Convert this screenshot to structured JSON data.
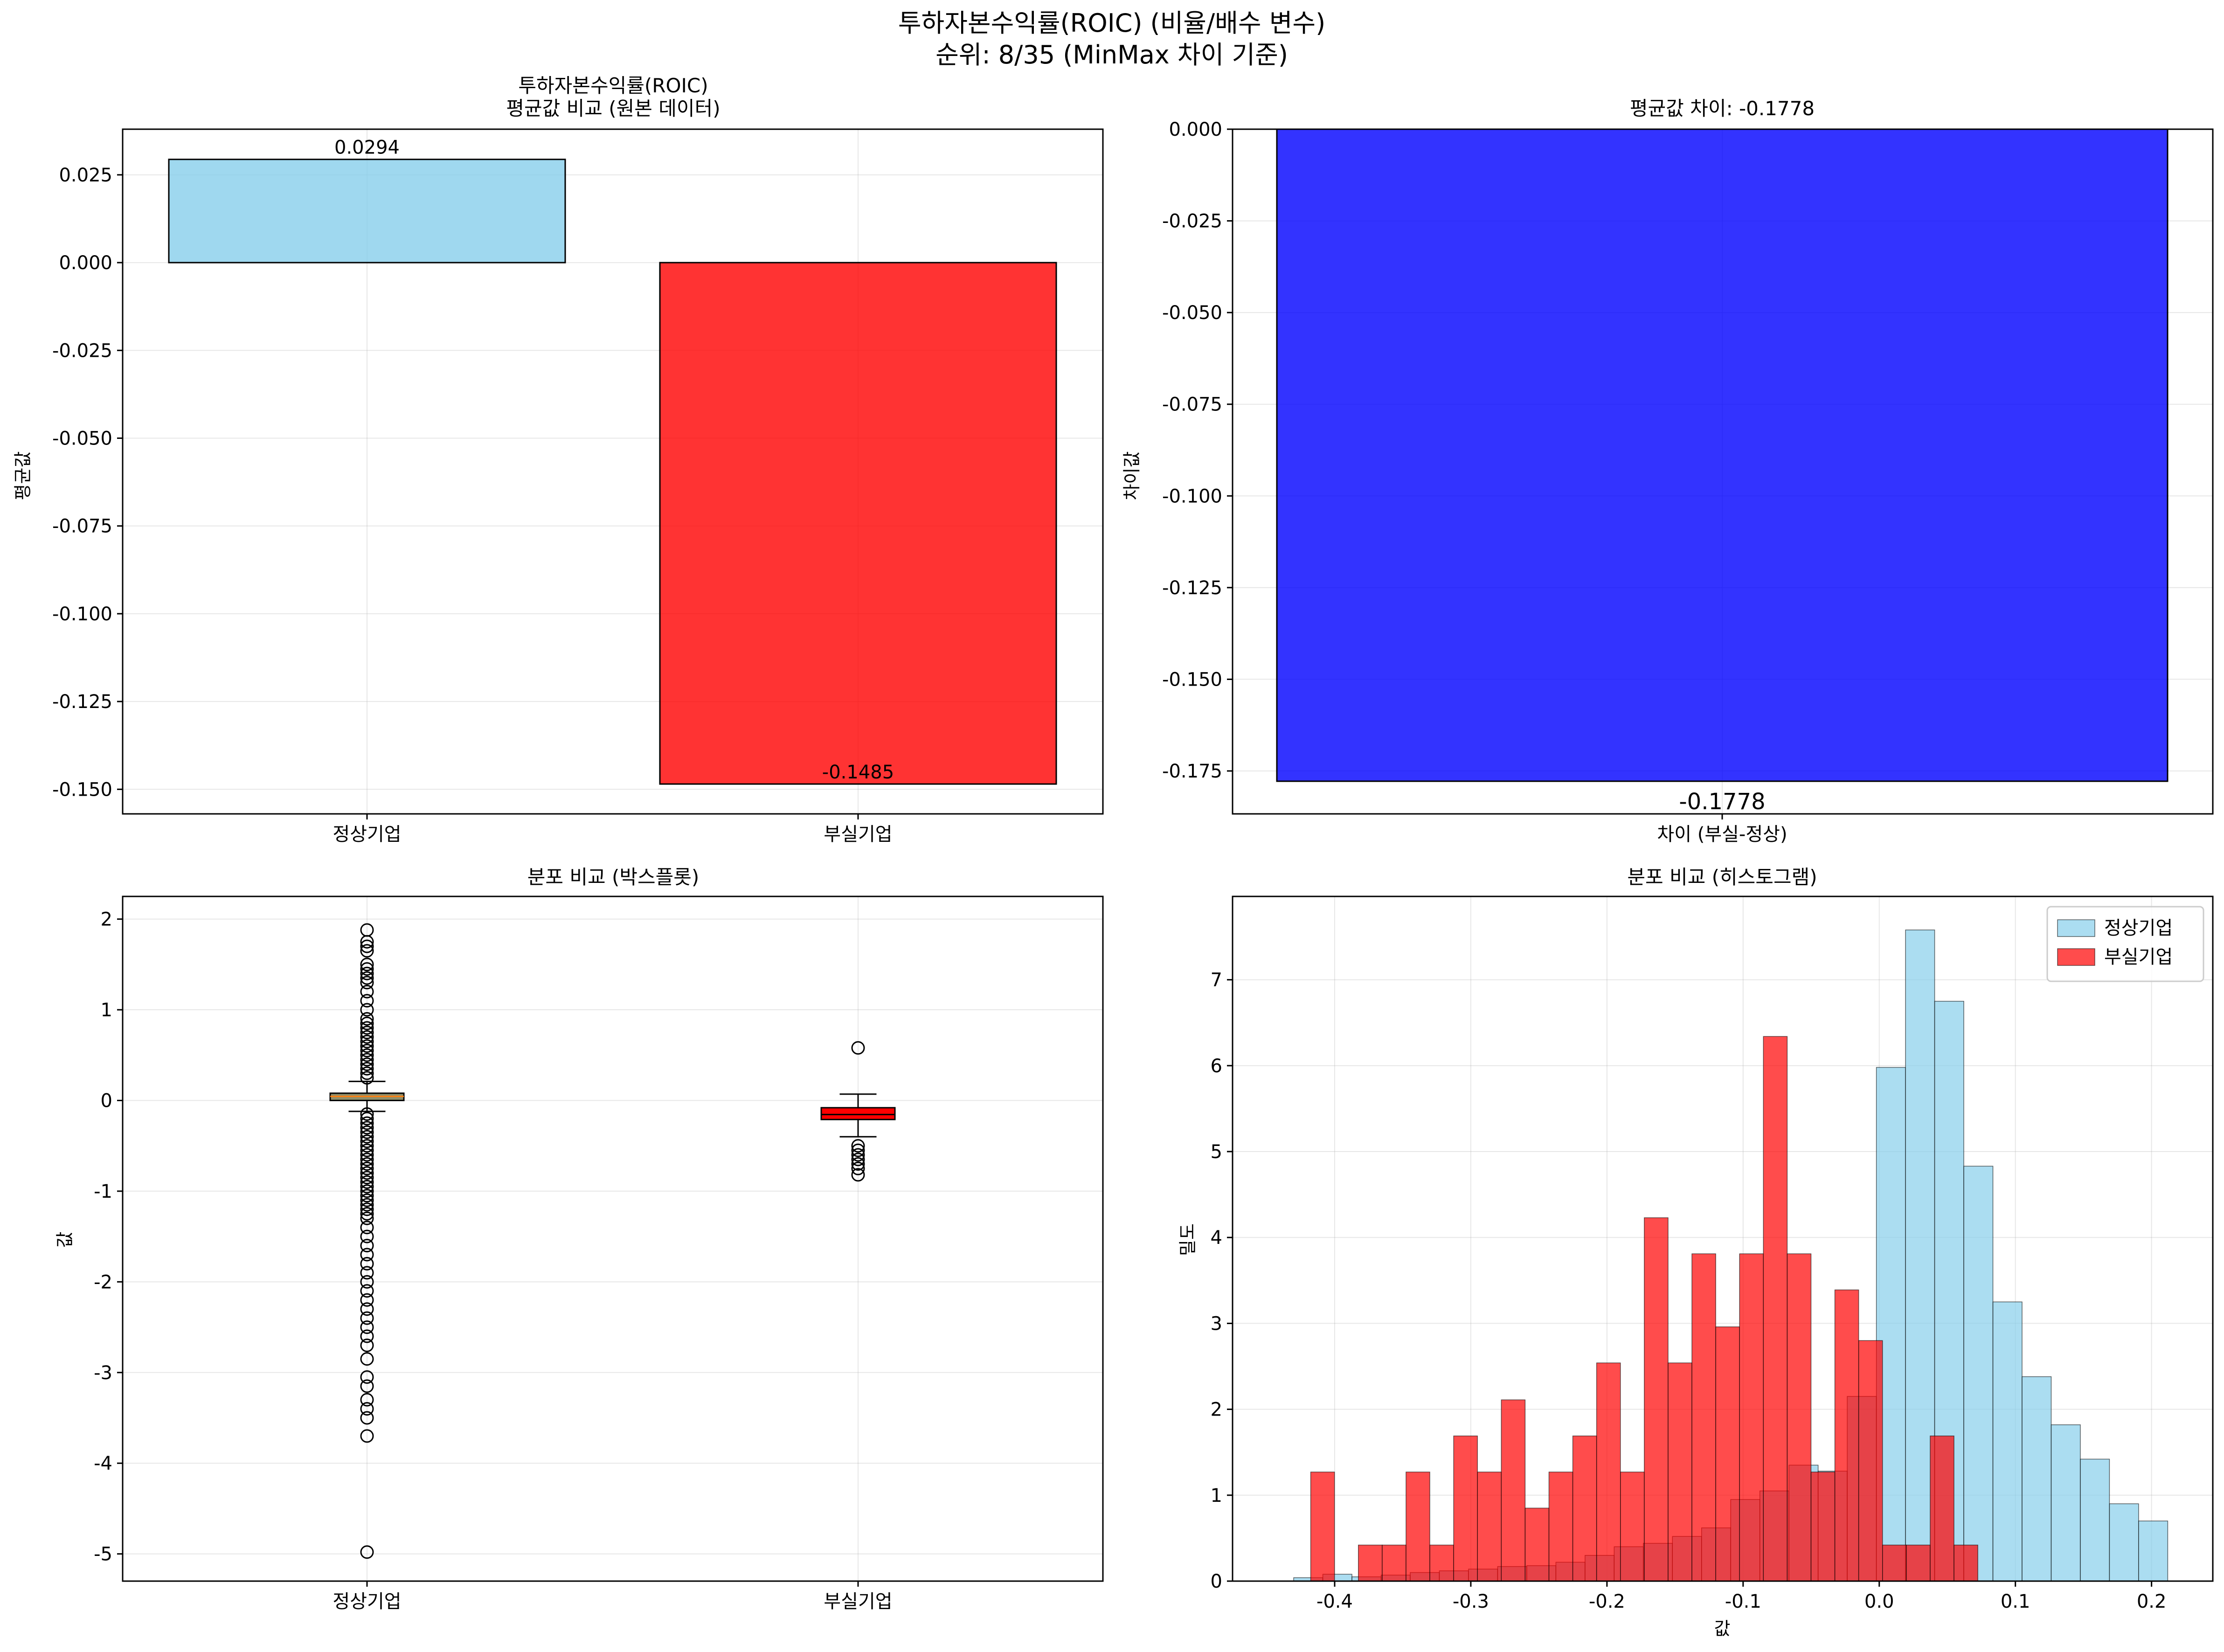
{
  "title_line1": "투하자본수익률(ROIC) (비율/배수 변수)",
  "title_line2": "순위: 8/35 (MinMax 차이 기준)",
  "colors": {
    "normal": "#87ceeb",
    "failed": "#ff0000",
    "diff": "#0000ff"
  },
  "chart_data": [
    {
      "type": "bar",
      "title": [
        "투하자본수익률(ROIC)",
        "평균값 비교 (원본 데이터)"
      ],
      "ylabel": "평균값",
      "categories": [
        "정상기업",
        "부실기업"
      ],
      "values": [
        0.0294,
        -0.1485
      ],
      "value_labels": [
        "0.0294",
        "-0.1485"
      ],
      "ylim": [
        -0.157,
        0.038
      ],
      "yticks": [
        -0.15,
        -0.125,
        -0.1,
        -0.075,
        -0.05,
        -0.025,
        0.0,
        0.025
      ],
      "ytick_labels": [
        "-0.150",
        "-0.125",
        "-0.100",
        "-0.075",
        "-0.050",
        "-0.025",
        "0.000",
        "0.025"
      ],
      "grid": true
    },
    {
      "type": "bar",
      "title": "평균값 차이: -0.1778",
      "ylabel": "차이값",
      "categories": [
        "차이 (부실-정상)"
      ],
      "values": [
        -0.1778
      ],
      "value_labels": [
        "-0.1778"
      ],
      "ylim": [
        -0.1867,
        0.0
      ],
      "yticks": [
        -0.175,
        -0.15,
        -0.125,
        -0.1,
        -0.075,
        -0.05,
        -0.025,
        0.0
      ],
      "ytick_labels": [
        "-0.175",
        "-0.150",
        "-0.125",
        "-0.100",
        "-0.075",
        "-0.050",
        "-0.025",
        "0.000"
      ],
      "grid": true
    },
    {
      "type": "box",
      "title": "분포 비교 (박스플롯)",
      "ylabel": "값",
      "categories": [
        "정상기업",
        "부실기업"
      ],
      "ylim": [
        -5.3,
        2.25
      ],
      "yticks": [
        -5,
        -4,
        -3,
        -2,
        -1,
        0,
        1,
        2
      ],
      "ytick_labels": [
        "-5",
        "-4",
        "-3",
        "-2",
        "-1",
        "0",
        "1",
        "2"
      ],
      "boxes": [
        {
          "q1": 0.0,
          "median": 0.045,
          "q3": 0.08,
          "whisker_low": -0.12,
          "whisker_high": 0.21,
          "outliers": [
            1.88,
            1.75,
            1.7,
            1.65,
            1.5,
            1.45,
            1.4,
            1.35,
            1.3,
            1.2,
            1.1,
            1.0,
            0.9,
            0.85,
            0.8,
            0.75,
            0.7,
            0.65,
            0.6,
            0.55,
            0.5,
            0.45,
            0.4,
            0.35,
            0.3,
            0.25,
            -0.15,
            -0.2,
            -0.25,
            -0.3,
            -0.35,
            -0.4,
            -0.45,
            -0.5,
            -0.55,
            -0.6,
            -0.65,
            -0.7,
            -0.75,
            -0.8,
            -0.85,
            -0.9,
            -0.95,
            -1.0,
            -1.05,
            -1.1,
            -1.15,
            -1.2,
            -1.25,
            -1.3,
            -1.4,
            -1.5,
            -1.6,
            -1.7,
            -1.8,
            -1.9,
            -2.0,
            -2.1,
            -2.2,
            -2.3,
            -2.4,
            -2.5,
            -2.6,
            -2.7,
            -2.85,
            -3.05,
            -3.15,
            -3.3,
            -3.4,
            -3.5,
            -3.7,
            -4.98
          ]
        },
        {
          "q1": -0.21,
          "median": -0.155,
          "q3": -0.08,
          "whisker_low": -0.4,
          "whisker_high": 0.07,
          "outliers": [
            0.58,
            -0.5,
            -0.55,
            -0.6,
            -0.65,
            -0.7,
            -0.75,
            -0.82
          ]
        }
      ],
      "grid": true
    },
    {
      "type": "histogram",
      "title": "분포 비교 (히스토그램)",
      "xlabel": "값",
      "ylabel": "밀도",
      "xlim": [
        -0.475,
        0.245
      ],
      "ylim": [
        0,
        7.97
      ],
      "xticks": [
        -0.4,
        -0.3,
        -0.2,
        -0.1,
        0.0,
        0.1,
        0.2
      ],
      "xtick_labels": [
        "-0.4",
        "-0.3",
        "-0.2",
        "-0.1",
        "0.0",
        "0.1",
        "0.2"
      ],
      "yticks": [
        0,
        1,
        2,
        3,
        4,
        5,
        6,
        7
      ],
      "ytick_labels": [
        "0",
        "1",
        "2",
        "3",
        "4",
        "5",
        "6",
        "7"
      ],
      "legend_position": "upper right",
      "series": [
        {
          "name": "정상기업",
          "bins": [
            -0.4301,
            -0.4087,
            -0.3873,
            -0.3659,
            -0.3445,
            -0.3231,
            -0.3017,
            -0.2803,
            -0.2589,
            -0.2375,
            -0.2161,
            -0.1947,
            -0.1733,
            -0.1519,
            -0.1305,
            -0.1091,
            -0.0877,
            -0.0663,
            -0.0449,
            -0.0235,
            -0.0021,
            0.0193,
            0.0407,
            0.0621,
            0.0835,
            0.1049,
            0.1263,
            0.1477,
            0.1691,
            0.1905,
            0.2119
          ],
          "density": [
            0.04,
            0.08,
            0.05,
            0.07,
            0.1,
            0.12,
            0.14,
            0.17,
            0.18,
            0.22,
            0.3,
            0.4,
            0.44,
            0.52,
            0.62,
            0.95,
            1.05,
            1.35,
            1.28,
            2.15,
            5.98,
            7.58,
            6.75,
            4.83,
            3.25,
            2.38,
            1.82,
            1.42,
            0.9,
            0.7
          ]
        },
        {
          "name": "부실기업",
          "bins": [
            -0.4176,
            -0.4001,
            -0.3826,
            -0.3651,
            -0.3476,
            -0.3301,
            -0.3126,
            -0.2951,
            -0.2776,
            -0.2601,
            -0.2426,
            -0.2251,
            -0.2076,
            -0.1901,
            -0.1726,
            -0.1551,
            -0.1376,
            -0.1201,
            -0.1026,
            -0.0851,
            -0.0676,
            -0.0501,
            -0.0326,
            -0.0151,
            0.0024,
            0.0199,
            0.0374,
            0.0549,
            0.0724
          ],
          "density": [
            1.27,
            0.0,
            0.42,
            0.42,
            1.27,
            0.42,
            1.69,
            1.27,
            2.11,
            0.85,
            1.27,
            1.69,
            2.54,
            1.27,
            4.23,
            2.54,
            3.81,
            2.96,
            3.81,
            6.34,
            3.81,
            1.27,
            3.39,
            2.8,
            0.42,
            0.42,
            1.69,
            0.42
          ]
        }
      ],
      "grid": true
    }
  ]
}
